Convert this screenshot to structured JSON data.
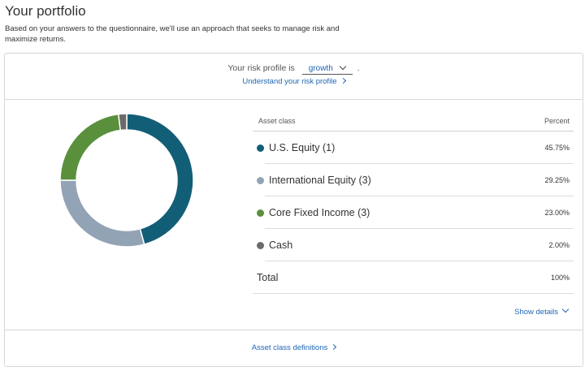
{
  "header": {
    "title": "Your portfolio",
    "description": "Based on your answers to the questionnaire, we'll use an approach that seeks to manage risk and maximize returns."
  },
  "risk": {
    "prefix": "Your risk profile is",
    "selected": "growth",
    "suffix": ".",
    "understand_link": "Understand your risk profile"
  },
  "table": {
    "col_asset": "Asset class",
    "col_percent": "Percent",
    "rows": [
      {
        "label": "U.S. Equity (1)",
        "percent_text": "45.75%",
        "value": 45.75,
        "color": "#135e77"
      },
      {
        "label": "International Equity (3)",
        "percent_text": "29.25%",
        "value": 29.25,
        "color": "#93a3b6"
      },
      {
        "label": "Core Fixed Income (3)",
        "percent_text": "23.00%",
        "value": 23.0,
        "color": "#5a8f3c"
      },
      {
        "label": "Cash",
        "percent_text": "2.00%",
        "value": 2.0,
        "color": "#6b6b6b"
      }
    ],
    "total_label": "Total",
    "total_percent": "100%"
  },
  "chart_data": {
    "type": "pie",
    "donut": true,
    "categories": [
      "U.S. Equity (1)",
      "International Equity (3)",
      "Core Fixed Income (3)",
      "Cash"
    ],
    "values": [
      45.75,
      29.25,
      23.0,
      2.0
    ],
    "colors": [
      "#135e77",
      "#93a3b6",
      "#5a8f3c",
      "#6b6b6b"
    ]
  },
  "links": {
    "show_details": "Show details",
    "asset_definitions": "Asset class definitions"
  }
}
